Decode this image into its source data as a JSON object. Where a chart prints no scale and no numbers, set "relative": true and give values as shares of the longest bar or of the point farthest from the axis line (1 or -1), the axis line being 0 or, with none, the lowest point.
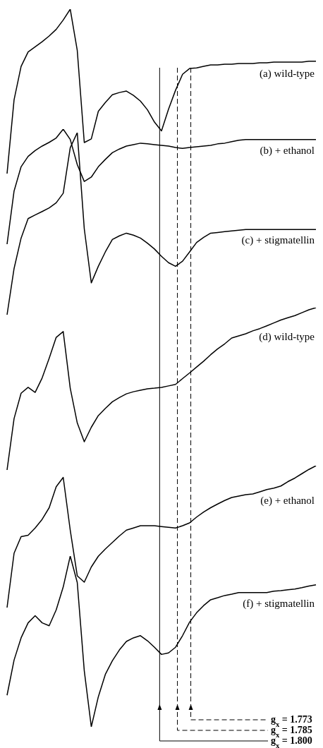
{
  "chart_data": [
    {
      "type": "line",
      "relative": true,
      "marker": "none",
      "line_style": "solid",
      "categories": [
        null,
        null,
        null,
        null,
        null,
        null,
        null,
        null,
        null,
        null,
        null,
        null,
        null,
        null,
        null,
        null,
        null,
        null,
        null,
        null,
        null,
        null,
        null,
        null,
        null,
        null,
        null,
        null,
        null,
        null,
        null,
        null,
        null,
        null,
        null,
        null,
        null,
        null,
        null,
        null,
        null,
        null,
        null,
        null,
        null
      ],
      "series": [
        {
          "name": "(a) wild-type",
          "color": "#000000",
          "values": [
            0,
            0.449,
            0.652,
            0.74,
            0.771,
            0.802,
            0.837,
            0.877,
            0.934,
            1,
            0.749,
            0.189,
            0.211,
            0.379,
            0.432,
            0.48,
            0.493,
            0.502,
            0.476,
            0.441,
            0.388,
            0.313,
            0.26,
            0.392,
            0.507,
            0.604,
            0.639,
            0.643,
            0.652,
            0.661,
            0.661,
            0.665,
            0.665,
            0.67,
            0.67,
            0.67,
            0.674,
            0.674,
            0.678,
            0.678,
            0.678,
            0.678,
            0.678,
            0.683,
            0.683
          ]
        }
      ]
    },
    {
      "type": "line",
      "relative": true,
      "marker": "none",
      "line_style": "solid",
      "categories": [
        null,
        null,
        null,
        null,
        null,
        null,
        null,
        null,
        null,
        null,
        null,
        null,
        null,
        null,
        null,
        null,
        null,
        null,
        null,
        null,
        null,
        null,
        null,
        null,
        null,
        null,
        null,
        null,
        null,
        null,
        null,
        null,
        null,
        null,
        null,
        null,
        null,
        null,
        null,
        null,
        null,
        null,
        null,
        null,
        null
      ],
      "series": [
        {
          "name": "(b) + ethanol",
          "color": "#000000",
          "values": [
            0,
            0.462,
            0.673,
            0.763,
            0.814,
            0.853,
            0.885,
            0.923,
            1,
            0.91,
            0.692,
            0.545,
            0.583,
            0.673,
            0.737,
            0.795,
            0.827,
            0.853,
            0.865,
            0.878,
            0.872,
            0.865,
            0.859,
            0.853,
            0.84,
            0.833,
            0.84,
            0.846,
            0.853,
            0.859,
            0.872,
            0.878,
            0.891,
            0.904,
            0.91,
            0.91,
            0.91,
            0.91,
            0.91,
            0.91,
            0.91,
            0.91,
            0.91,
            0.91,
            0.91
          ]
        }
      ]
    },
    {
      "type": "line",
      "relative": true,
      "marker": "none",
      "line_style": "solid",
      "categories": [
        null,
        null,
        null,
        null,
        null,
        null,
        null,
        null,
        null,
        null,
        null,
        null,
        null,
        null,
        null,
        null,
        null,
        null,
        null,
        null,
        null,
        null,
        null,
        null,
        null,
        null,
        null,
        null,
        null,
        null,
        null,
        null,
        null,
        null,
        null,
        null,
        null,
        null,
        null,
        null,
        null,
        null,
        null,
        null,
        null
      ],
      "series": [
        {
          "name": "(c) + stigmatellin",
          "color": "#000000",
          "values": [
            0,
            0.254,
            0.421,
            0.528,
            0.548,
            0.567,
            0.587,
            0.615,
            0.667,
            0.917,
            1,
            0.472,
            0.175,
            0.266,
            0.345,
            0.413,
            0.433,
            0.448,
            0.437,
            0.421,
            0.393,
            0.361,
            0.321,
            0.286,
            0.266,
            0.294,
            0.345,
            0.397,
            0.425,
            0.448,
            0.452,
            0.456,
            0.46,
            0.464,
            0.468,
            0.468,
            0.468,
            0.468,
            0.468,
            0.468,
            0.468,
            0.468,
            0.468,
            0.468,
            0.468
          ]
        }
      ]
    },
    {
      "type": "line",
      "relative": true,
      "marker": "none",
      "line_style": "solid",
      "categories": [
        null,
        null,
        null,
        null,
        null,
        null,
        null,
        null,
        null,
        null,
        null,
        null,
        null,
        null,
        null,
        null,
        null,
        null,
        null,
        null,
        null,
        null,
        null,
        null,
        null,
        null,
        null,
        null,
        null,
        null,
        null,
        null,
        null,
        null,
        null,
        null,
        null,
        null,
        null,
        null,
        null,
        null,
        null,
        null,
        null
      ],
      "series": [
        {
          "name": "(d) wild-type",
          "color": "#000000",
          "values": [
            0,
            0.317,
            0.473,
            0.509,
            0.478,
            0.567,
            0.688,
            0.817,
            0.853,
            0.504,
            0.29,
            0.174,
            0.263,
            0.335,
            0.379,
            0.42,
            0.446,
            0.469,
            0.482,
            0.491,
            0.5,
            0.504,
            0.509,
            0.518,
            0.527,
            0.563,
            0.598,
            0.634,
            0.67,
            0.71,
            0.746,
            0.777,
            0.813,
            0.826,
            0.839,
            0.857,
            0.871,
            0.888,
            0.906,
            0.924,
            0.938,
            0.951,
            0.969,
            0.987,
            1
          ]
        }
      ]
    },
    {
      "type": "line",
      "relative": true,
      "marker": "none",
      "line_style": "solid",
      "categories": [
        null,
        null,
        null,
        null,
        null,
        null,
        null,
        null,
        null,
        null,
        null,
        null,
        null,
        null,
        null,
        null,
        null,
        null,
        null,
        null,
        null,
        null,
        null,
        null,
        null,
        null,
        null,
        null,
        null,
        null,
        null,
        null,
        null,
        null,
        null,
        null,
        null,
        null,
        null,
        null,
        null,
        null,
        null,
        null,
        null
      ],
      "series": [
        {
          "name": "(e) + ethanol",
          "color": "#000000",
          "values": [
            0,
            0.383,
            0.5,
            0.51,
            0.561,
            0.622,
            0.704,
            0.852,
            0.918,
            0.546,
            0.224,
            0.179,
            0.286,
            0.362,
            0.413,
            0.459,
            0.505,
            0.546,
            0.561,
            0.577,
            0.577,
            0.577,
            0.571,
            0.566,
            0.561,
            0.577,
            0.597,
            0.638,
            0.673,
            0.704,
            0.73,
            0.755,
            0.776,
            0.786,
            0.796,
            0.801,
            0.816,
            0.832,
            0.842,
            0.857,
            0.888,
            0.913,
            0.944,
            0.974,
            1
          ]
        }
      ]
    },
    {
      "type": "line",
      "relative": true,
      "marker": "none",
      "line_style": "solid",
      "categories": [
        null,
        null,
        null,
        null,
        null,
        null,
        null,
        null,
        null,
        null,
        null,
        null,
        null,
        null,
        null,
        null,
        null,
        null,
        null,
        null,
        null,
        null,
        null,
        null,
        null,
        null,
        null,
        null,
        null,
        null,
        null,
        null,
        null,
        null,
        null,
        null,
        null,
        null,
        null,
        null,
        null,
        null,
        null,
        null,
        null
      ],
      "series": [
        {
          "name": "(f) + stigmatellin",
          "color": "#000000",
          "values": [
            0.185,
            0.391,
            0.521,
            0.609,
            0.651,
            0.609,
            0.592,
            0.685,
            0.819,
            1,
            0.845,
            0.328,
            0,
            0.176,
            0.307,
            0.387,
            0.45,
            0.5,
            0.521,
            0.534,
            0.504,
            0.466,
            0.424,
            0.433,
            0.466,
            0.534,
            0.613,
            0.668,
            0.71,
            0.744,
            0.756,
            0.769,
            0.777,
            0.786,
            0.786,
            0.786,
            0.786,
            0.786,
            0.794,
            0.798,
            0.803,
            0.807,
            0.815,
            0.824,
            0.832
          ]
        }
      ],
      "annotations": [
        "g$_{x}$ = 1.773",
        "g$_{x}$ = 1.785",
        "g$_{x}$ = 1.800"
      ]
    }
  ]
}
